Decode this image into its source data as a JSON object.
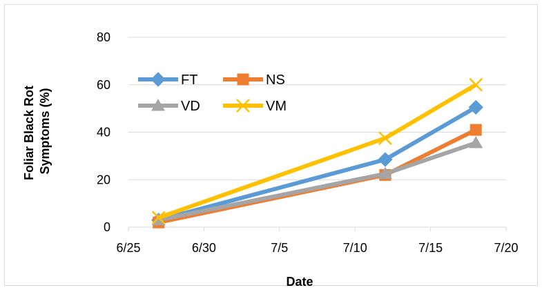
{
  "chart_data": {
    "type": "line",
    "title": "",
    "xlabel": "Date",
    "ylabel": [
      "Foliar Black Rot",
      "Symptoms (%)"
    ],
    "x_unit": "date",
    "xlim": [
      "2000-06-25",
      "2000-07-20"
    ],
    "ylim": [
      0,
      80
    ],
    "x_ticks": [
      "6/25",
      "6/30",
      "7/5",
      "7/10",
      "7/15",
      "7/20"
    ],
    "y_ticks": [
      "0",
      "20",
      "40",
      "60",
      "80"
    ],
    "grid": {
      "horizontal": true,
      "vertical": false
    },
    "legend": {
      "placement": "top-left"
    },
    "series": [
      {
        "name": "FT",
        "color": "#5b9bd5",
        "marker": "diamond",
        "points": [
          {
            "x": "2000-06-27",
            "y": 3
          },
          {
            "x": "2000-07-12",
            "y": 28.5
          },
          {
            "x": "2000-07-18",
            "y": 50.5
          }
        ]
      },
      {
        "name": "NS",
        "color": "#ed7d31",
        "marker": "square",
        "points": [
          {
            "x": "2000-06-27",
            "y": 2
          },
          {
            "x": "2000-07-12",
            "y": 22
          },
          {
            "x": "2000-07-18",
            "y": 41
          }
        ]
      },
      {
        "name": "VD",
        "color": "#a5a5a5",
        "marker": "triangle",
        "points": [
          {
            "x": "2000-06-27",
            "y": 3
          },
          {
            "x": "2000-07-12",
            "y": 22.5
          },
          {
            "x": "2000-07-18",
            "y": 35.5
          }
        ]
      },
      {
        "name": "VM",
        "color": "#ffc000",
        "marker": "x",
        "points": [
          {
            "x": "2000-06-27",
            "y": 4
          },
          {
            "x": "2000-07-12",
            "y": 37.5
          },
          {
            "x": "2000-07-18",
            "y": 60
          }
        ]
      }
    ]
  }
}
